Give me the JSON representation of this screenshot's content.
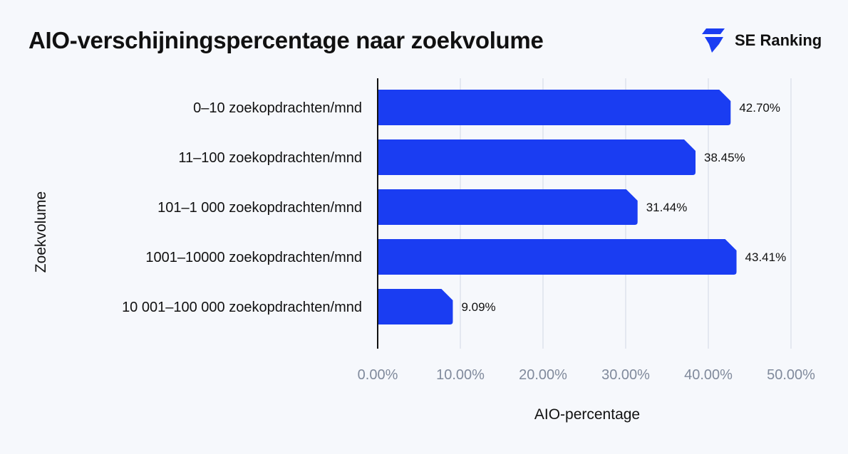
{
  "header": {
    "title": "AIO-verschijningspercentage naar zoekvolume",
    "brand_name": "SE Ranking",
    "brand_icon": "se-ranking-logo-icon",
    "brand_color": "#1a3df2"
  },
  "chart_data": {
    "type": "bar",
    "orientation": "horizontal",
    "categories": [
      "0–10 zoekopdrachten/mnd",
      "11–100 zoekopdrachten/mnd",
      "101–1 000 zoekopdrachten/mnd",
      "1001–10000 zoekopdrachten/mnd",
      "10 001–100 000 zoekopdrachten/mnd"
    ],
    "values": [
      42.7,
      38.45,
      31.44,
      43.41,
      9.09
    ],
    "value_labels": [
      "42.70%",
      "38.45%",
      "31.44%",
      "43.41%",
      "9.09%"
    ],
    "xticks": [
      "0.00%",
      "10.00%",
      "20.00%",
      "30.00%",
      "40.00%",
      "50.00%"
    ],
    "xlabel": "AIO-percentage",
    "ylabel": "Zoekvolume",
    "xlim": [
      0,
      50
    ],
    "grid": "vertical",
    "bar_color": "#1a3df2",
    "grid_color": "#dde2ec",
    "tick_color": "#808a9c"
  }
}
